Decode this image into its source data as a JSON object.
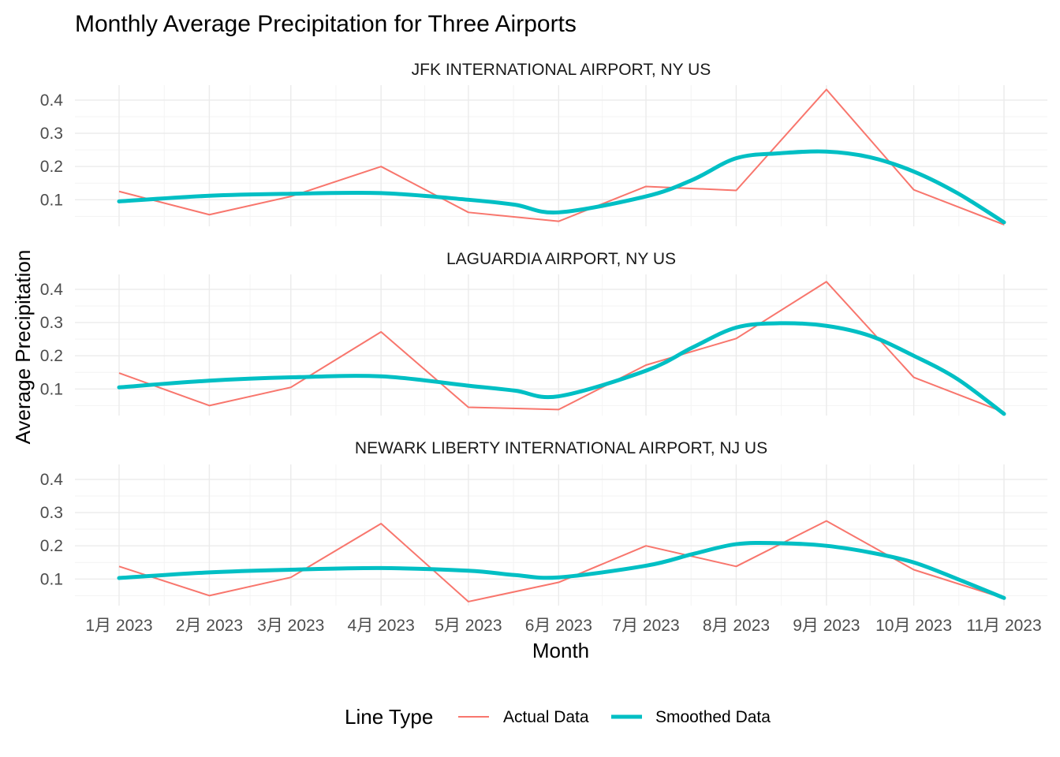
{
  "chart_data": {
    "type": "line",
    "title": "Monthly Average Precipitation for Three Airports",
    "xlabel": "Month",
    "ylabel": "Average Precipitation",
    "categories": [
      "1月 2023",
      "2月 2023",
      "3月 2023",
      "4月 2023",
      "5月 2023",
      "6月 2023",
      "7月 2023",
      "8月 2023",
      "9月 2023",
      "10月 2023",
      "11月 2023"
    ],
    "month_days": [
      1,
      32,
      60,
      91,
      121,
      152,
      182,
      213,
      244,
      274,
      305
    ],
    "yticks": [
      0.1,
      0.2,
      0.3,
      0.4
    ],
    "ylim": [
      0.02,
      0.445
    ],
    "grid": true,
    "legend": {
      "title": "Line Type",
      "position": "bottom",
      "entries": [
        {
          "label": "Actual Data",
          "color": "#F8766D"
        },
        {
          "label": "Smoothed Data",
          "color": "#00BFC4"
        }
      ]
    },
    "panels": [
      {
        "label": "JFK INTERNATIONAL AIRPORT, NY US",
        "actual": [
          0.125,
          0.055,
          0.11,
          0.2,
          0.062,
          0.035,
          0.14,
          0.128,
          0.432,
          0.13,
          0.025
        ],
        "smooth_x": [
          1,
          32,
          60,
          91,
          121,
          137,
          152,
          182,
          198,
          213,
          228,
          244,
          259,
          274,
          289,
          305
        ],
        "smooth_y": [
          0.095,
          0.112,
          0.118,
          0.12,
          0.1,
          0.085,
          0.062,
          0.11,
          0.16,
          0.225,
          0.24,
          0.245,
          0.228,
          0.185,
          0.12,
          0.032
        ]
      },
      {
        "label": "LAGUARDIA AIRPORT, NY US",
        "actual": [
          0.148,
          0.05,
          0.105,
          0.272,
          0.045,
          0.038,
          0.172,
          0.252,
          0.423,
          0.135,
          0.03
        ],
        "smooth_x": [
          1,
          32,
          60,
          91,
          121,
          137,
          152,
          182,
          198,
          213,
          228,
          244,
          259,
          274,
          289,
          305
        ],
        "smooth_y": [
          0.105,
          0.125,
          0.135,
          0.138,
          0.11,
          0.095,
          0.078,
          0.155,
          0.225,
          0.285,
          0.298,
          0.29,
          0.26,
          0.2,
          0.13,
          0.025
        ]
      },
      {
        "label": "NEWARK LIBERTY INTERNATIONAL AIRPORT, NJ US",
        "actual": [
          0.138,
          0.05,
          0.105,
          0.267,
          0.032,
          0.09,
          0.2,
          0.138,
          0.275,
          0.128,
          0.042
        ],
        "smooth_x": [
          1,
          32,
          60,
          91,
          121,
          137,
          152,
          182,
          198,
          213,
          228,
          244,
          259,
          274,
          289,
          305
        ],
        "smooth_y": [
          0.103,
          0.12,
          0.128,
          0.133,
          0.125,
          0.112,
          0.105,
          0.14,
          0.175,
          0.205,
          0.208,
          0.2,
          0.18,
          0.15,
          0.1,
          0.043
        ]
      }
    ]
  }
}
